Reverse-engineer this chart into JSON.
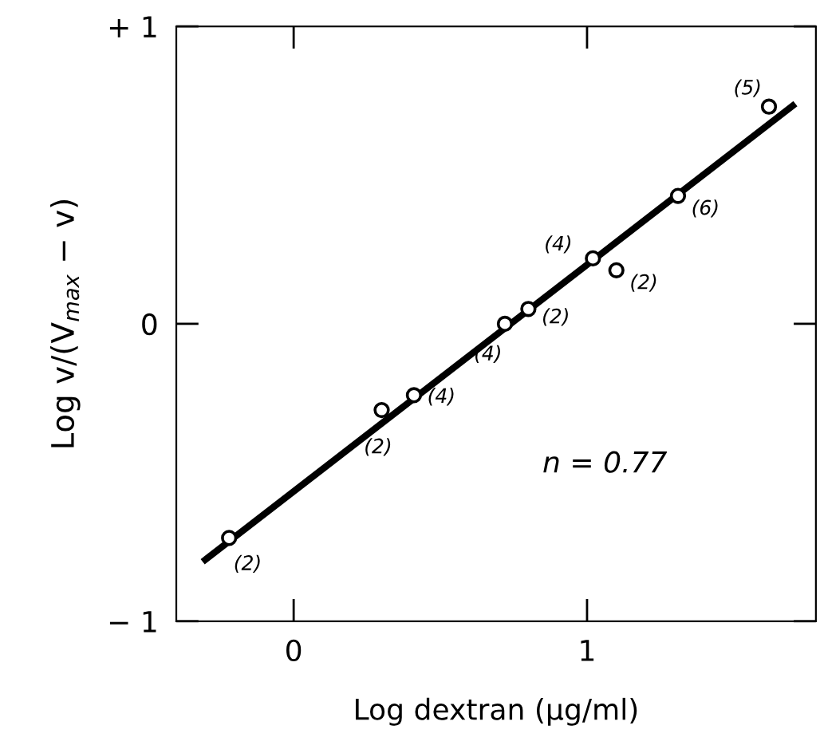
{
  "chart_data": {
    "type": "scatter",
    "xlabel": "Log dextran (µg/ml)",
    "ylabel": "Log v/(V$_{max}$ − v)",
    "xlim": [
      -0.4,
      1.78
    ],
    "ylim": [
      -1,
      1
    ],
    "xticks": [
      0,
      1
    ],
    "yticks": [
      {
        "value": 1,
        "label": "+ 1"
      },
      0,
      {
        "value": -1,
        "label": "− 1"
      }
    ],
    "grid": false,
    "legend": false,
    "series": [
      {
        "marker": "circle",
        "color": "#000000",
        "x": [
          -0.22,
          0.3,
          0.41,
          0.72,
          0.8,
          1.02,
          1.1,
          1.31,
          1.62
        ],
        "values": [
          -0.72,
          -0.29,
          -0.24,
          0.0,
          0.05,
          0.22,
          0.18,
          0.43,
          0.73
        ]
      },
      {
        "type": "line",
        "marker": "none",
        "line_style": "solid",
        "color": "#000000",
        "x": [
          -0.31,
          1.71
        ],
        "values": [
          -0.8,
          0.74
        ]
      }
    ],
    "annotations": [
      {
        "text": "(2)",
        "x": -0.22,
        "y": -0.72
      },
      {
        "text": "(2)",
        "x": 0.3,
        "y": -0.29
      },
      {
        "text": "(4)",
        "x": 0.41,
        "y": -0.24
      },
      {
        "text": "(4)",
        "x": 0.72,
        "y": 0.0
      },
      {
        "text": "(2)",
        "x": 0.8,
        "y": 0.05
      },
      {
        "text": "(4)",
        "x": 1.02,
        "y": 0.22
      },
      {
        "text": "(2)",
        "x": 1.1,
        "y": 0.18
      },
      {
        "text": "(6)",
        "x": 1.31,
        "y": 0.43
      },
      {
        "text": "(5)",
        "x": 1.62,
        "y": 0.73
      },
      "n = 0.77"
    ]
  }
}
